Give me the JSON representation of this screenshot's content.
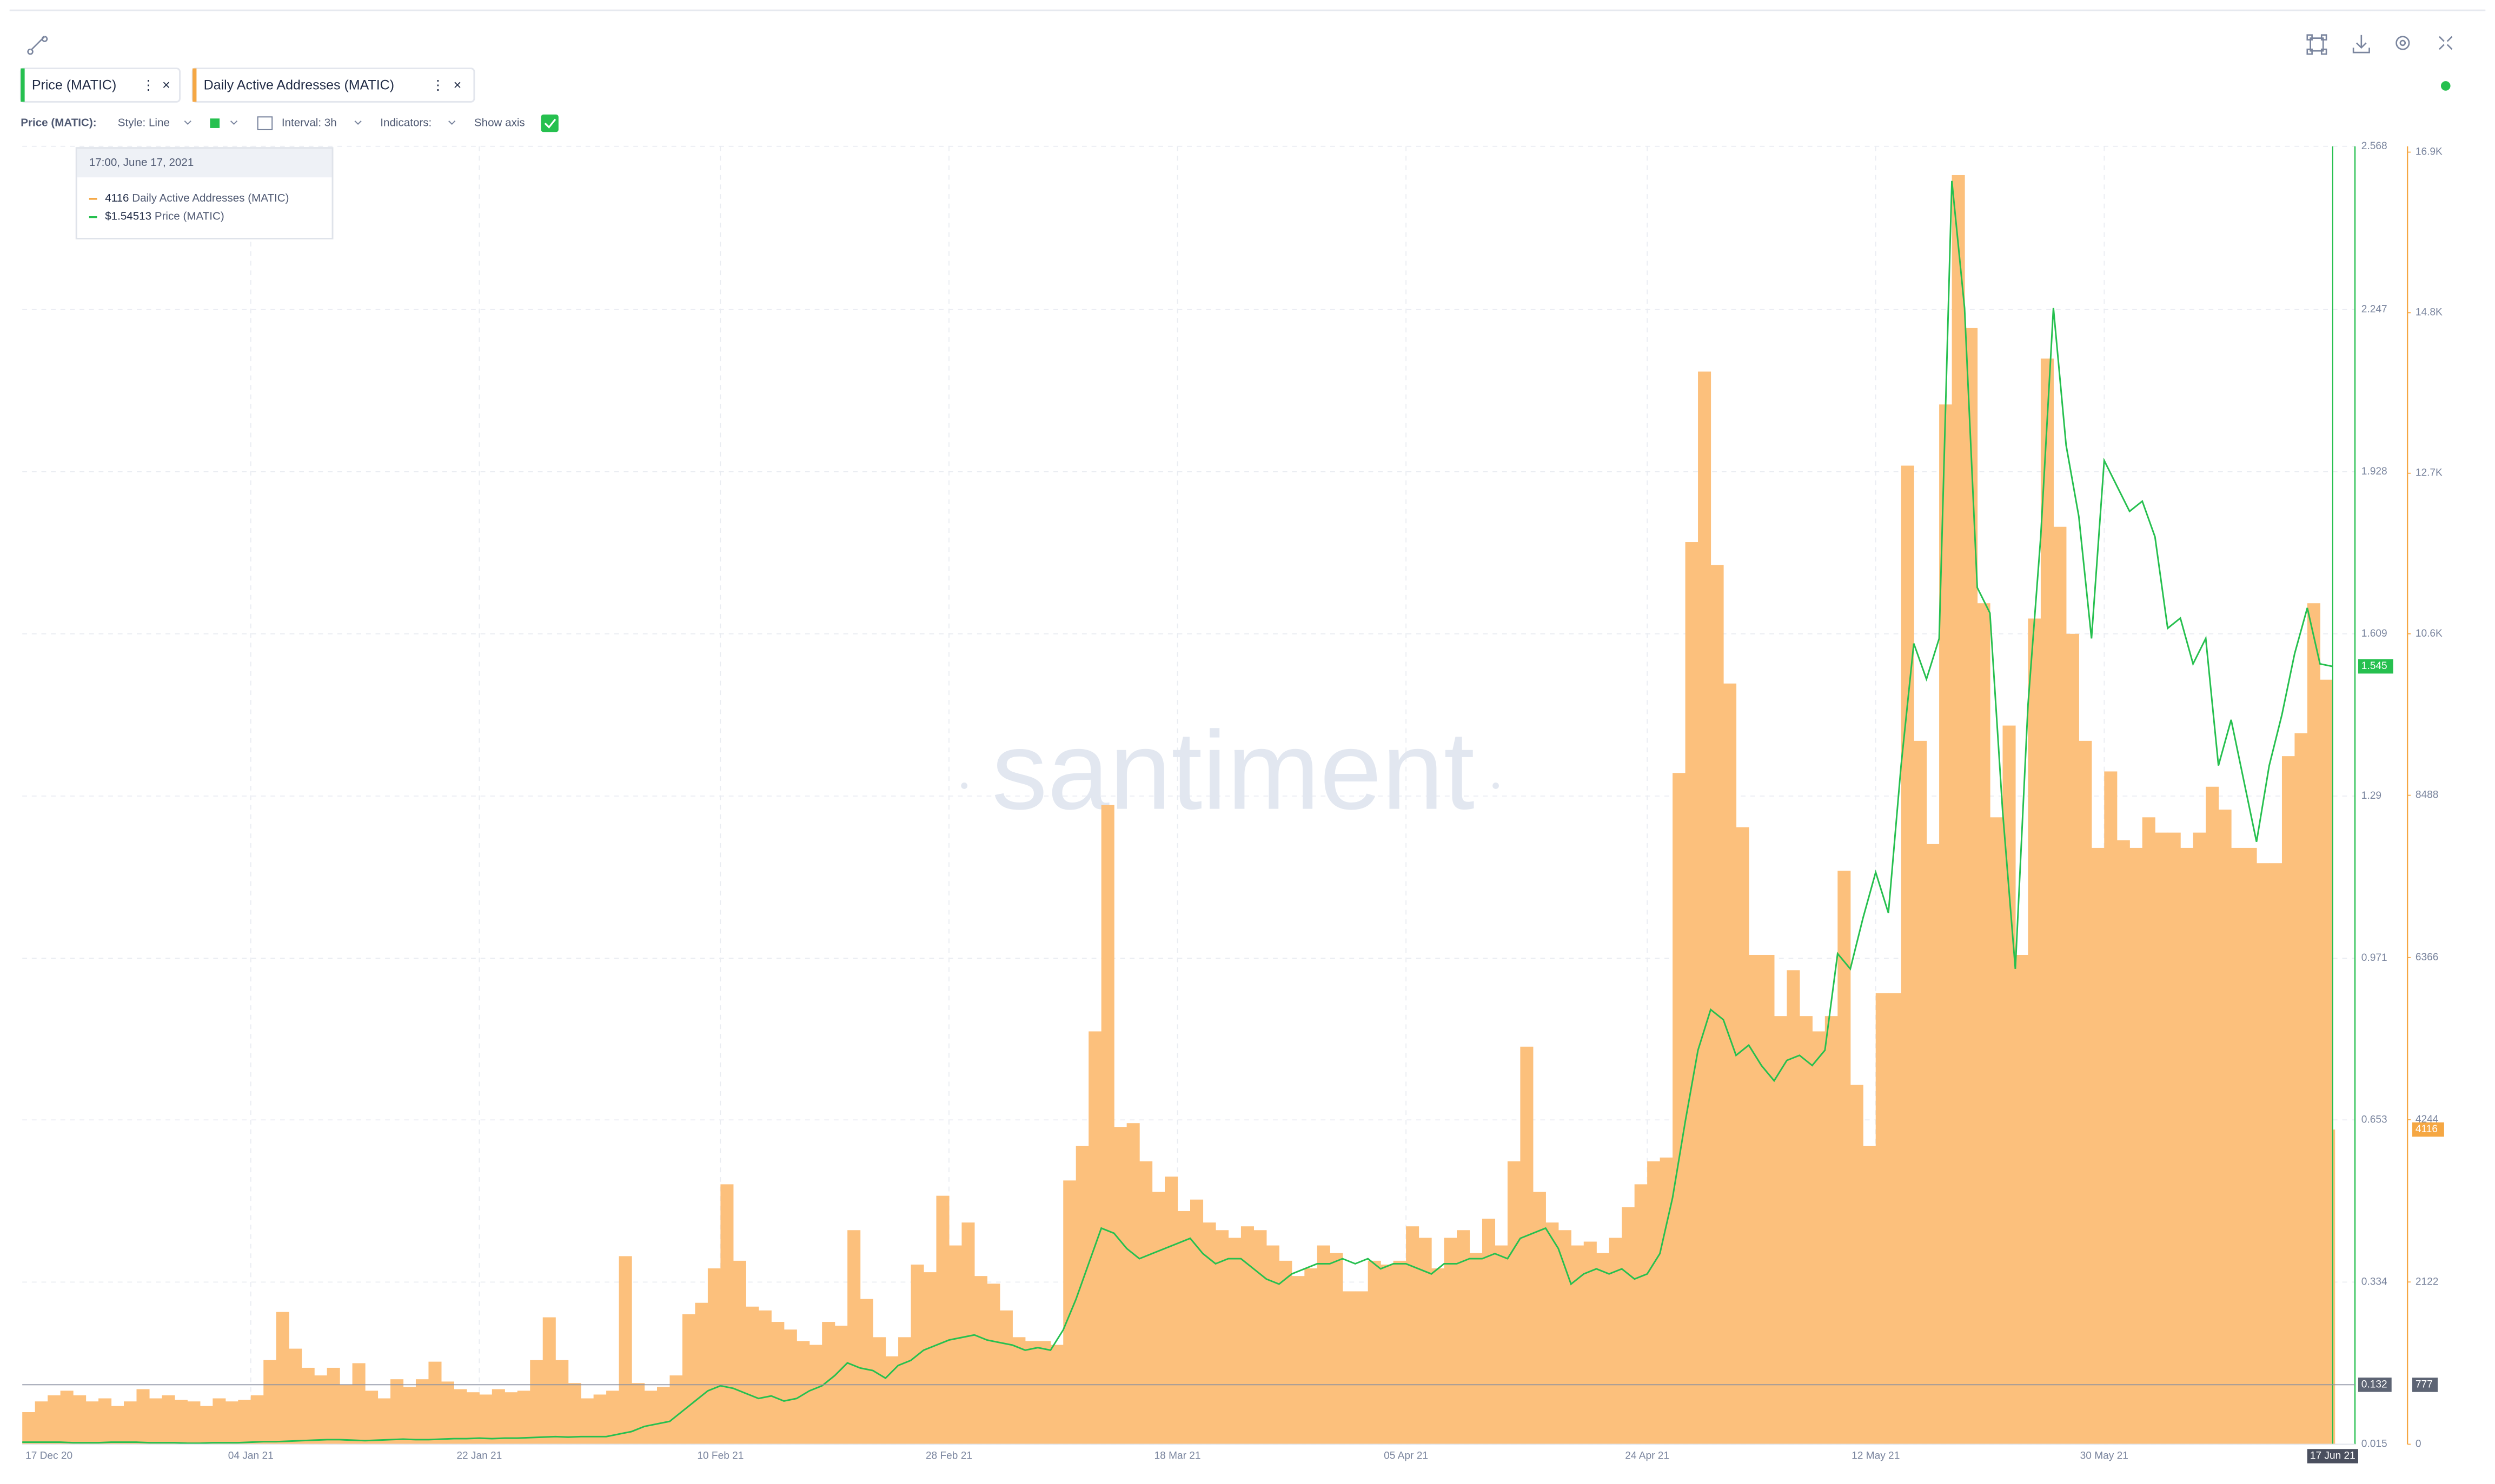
{
  "ui": {
    "toolbar": {
      "metric": "Price (MATIC):",
      "style": "Style: Line",
      "interval": "Interval: 3h",
      "indicators": "Indicators:",
      "show_axis": "Show axis"
    },
    "watermark": "santiment",
    "tooltip": {
      "time": "17:00, June 17, 2021",
      "rows": [
        {
          "value": "4116",
          "label": "Daily Active Addresses (MATIC)"
        },
        {
          "value": "$1.54513",
          "label": "Price (MATIC)"
        }
      ]
    }
  },
  "chart_data": {
    "type": "combo",
    "categories": [
      "17 Dec 20",
      null,
      null,
      null,
      null,
      null,
      null,
      null,
      null,
      null,
      null,
      null,
      null,
      null,
      null,
      null,
      null,
      null,
      "04 Jan 21",
      null,
      null,
      null,
      null,
      null,
      null,
      null,
      null,
      null,
      null,
      null,
      null,
      null,
      null,
      null,
      null,
      null,
      "22 Jan 21",
      null,
      null,
      null,
      null,
      null,
      null,
      null,
      null,
      null,
      null,
      null,
      null,
      null,
      null,
      null,
      null,
      null,
      null,
      "10 Feb 21",
      null,
      null,
      null,
      null,
      null,
      null,
      null,
      null,
      null,
      null,
      null,
      null,
      null,
      null,
      null,
      null,
      null,
      "28 Feb 21",
      null,
      null,
      null,
      null,
      null,
      null,
      null,
      null,
      null,
      null,
      null,
      null,
      null,
      null,
      null,
      null,
      null,
      "18 Mar 21",
      null,
      null,
      null,
      null,
      null,
      null,
      null,
      null,
      null,
      null,
      null,
      null,
      null,
      null,
      null,
      null,
      null,
      "05 Apr 21",
      null,
      null,
      null,
      null,
      null,
      null,
      null,
      null,
      null,
      null,
      null,
      null,
      null,
      null,
      null,
      null,
      null,
      null,
      "24 Apr 21",
      null,
      null,
      null,
      null,
      null,
      null,
      null,
      null,
      null,
      null,
      null,
      null,
      null,
      null,
      null,
      null,
      null,
      "12 May 21",
      null,
      null,
      null,
      null,
      null,
      null,
      null,
      null,
      null,
      null,
      null,
      null,
      null,
      null,
      null,
      null,
      null,
      "30 May 21",
      null,
      null,
      null,
      null,
      null,
      null,
      null,
      null,
      null,
      null,
      null,
      null,
      null,
      null,
      null,
      null,
      null,
      "17 Jun 21"
    ],
    "series": [
      {
        "name": "Daily Active Addresses (MATIC)",
        "type": "bar",
        "axis": "y2",
        "color": "#fcc07c",
        "axis_color": "#f5a743",
        "current": 4116,
        "values": [
          420,
          560,
          640,
          700,
          640,
          560,
          600,
          500,
          560,
          720,
          600,
          640,
          580,
          560,
          500,
          600,
          560,
          580,
          640,
          1100,
          1730,
          1250,
          1000,
          900,
          1000,
          780,
          1060,
          700,
          600,
          850,
          750,
          850,
          1080,
          820,
          720,
          680,
          650,
          720,
          680,
          700,
          1100,
          1660,
          1100,
          800,
          600,
          650,
          700,
          2460,
          800,
          700,
          750,
          900,
          1700,
          1850,
          2300,
          3400,
          2400,
          1800,
          1750,
          1600,
          1500,
          1350,
          1300,
          1600,
          1550,
          2800,
          1900,
          1400,
          1150,
          1400,
          2350,
          2250,
          3250,
          2600,
          2900,
          2200,
          2100,
          1750,
          1400,
          1350,
          1350,
          1300,
          3450,
          3900,
          5400,
          8360,
          4150,
          4200,
          3700,
          3300,
          3500,
          3050,
          3200,
          2900,
          2800,
          2700,
          2850,
          2800,
          2600,
          2400,
          2200,
          2300,
          2600,
          2500,
          2000,
          2000,
          2400,
          2350,
          2400,
          2850,
          2700,
          2300,
          2700,
          2800,
          2500,
          2950,
          2600,
          3700,
          5200,
          3300,
          2900,
          2800,
          2600,
          2650,
          2500,
          2700,
          3100,
          3400,
          3700,
          3750,
          8780,
          11800,
          14030,
          11500,
          9950,
          8070,
          6400,
          6400,
          5600,
          6200,
          5600,
          5400,
          5600,
          7500,
          4700,
          3900,
          5900,
          5900,
          12800,
          9200,
          7850,
          13600,
          16600,
          14600,
          11000,
          8200,
          9400,
          6400,
          10800,
          14200,
          12000,
          10600,
          9200,
          7800,
          8800,
          7900,
          7800,
          8200,
          8000,
          8000,
          7800,
          8000,
          8600,
          8300,
          7800,
          7800,
          7600,
          7600,
          9000,
          9300,
          11000,
          10000,
          4116
        ]
      },
      {
        "name": "Price (MATIC)",
        "type": "line",
        "axis": "y",
        "color": "#26c04f",
        "axis_color": "#26c04f",
        "current": 1.545,
        "values": [
          0.019,
          0.019,
          0.019,
          0.019,
          0.018,
          0.018,
          0.018,
          0.019,
          0.019,
          0.019,
          0.018,
          0.018,
          0.018,
          0.017,
          0.017,
          0.018,
          0.018,
          0.018,
          0.019,
          0.02,
          0.02,
          0.021,
          0.022,
          0.023,
          0.024,
          0.024,
          0.023,
          0.022,
          0.023,
          0.024,
          0.025,
          0.024,
          0.024,
          0.025,
          0.026,
          0.026,
          0.027,
          0.026,
          0.027,
          0.027,
          0.028,
          0.029,
          0.03,
          0.029,
          0.03,
          0.03,
          0.03,
          0.035,
          0.04,
          0.05,
          0.055,
          0.06,
          0.08,
          0.1,
          0.12,
          0.13,
          0.125,
          0.115,
          0.105,
          0.11,
          0.1,
          0.105,
          0.12,
          0.13,
          0.15,
          0.175,
          0.165,
          0.16,
          0.145,
          0.17,
          0.18,
          0.2,
          0.21,
          0.22,
          0.225,
          0.23,
          0.22,
          0.215,
          0.21,
          0.2,
          0.205,
          0.2,
          0.24,
          0.3,
          0.37,
          0.44,
          0.43,
          0.4,
          0.38,
          0.39,
          0.4,
          0.41,
          0.42,
          0.39,
          0.37,
          0.38,
          0.38,
          0.36,
          0.34,
          0.33,
          0.35,
          0.36,
          0.37,
          0.37,
          0.38,
          0.37,
          0.38,
          0.36,
          0.37,
          0.37,
          0.36,
          0.35,
          0.37,
          0.37,
          0.38,
          0.38,
          0.39,
          0.38,
          0.42,
          0.43,
          0.44,
          0.4,
          0.33,
          0.35,
          0.36,
          0.35,
          0.36,
          0.34,
          0.35,
          0.39,
          0.5,
          0.65,
          0.79,
          0.87,
          0.85,
          0.78,
          0.8,
          0.76,
          0.73,
          0.77,
          0.78,
          0.76,
          0.79,
          0.98,
          0.95,
          1.05,
          1.14,
          1.06,
          1.35,
          1.59,
          1.52,
          1.6,
          2.5,
          2.25,
          1.7,
          1.65,
          1.26,
          0.95,
          1.47,
          1.8,
          2.25,
          1.98,
          1.84,
          1.6,
          1.95,
          1.9,
          1.85,
          1.87,
          1.8,
          1.62,
          1.64,
          1.55,
          1.6,
          1.35,
          1.44,
          1.32,
          1.2,
          1.35,
          1.45,
          1.57,
          1.66,
          1.55,
          1.545
        ]
      }
    ],
    "ylim": [
      0.015,
      2.568
    ],
    "yticks": [
      0.015,
      0.334,
      0.653,
      0.971,
      1.29,
      1.609,
      1.928,
      2.247,
      2.568
    ],
    "y2lim": [
      0,
      16976
    ],
    "y2ticks": [
      0,
      2122,
      4244,
      6366,
      8488,
      {
        "value": 10600,
        "label": "10.6K"
      },
      {
        "value": 12700,
        "label": "12.7K"
      },
      {
        "value": 14800,
        "label": "14.8K"
      },
      {
        "value": 16900,
        "label": "16.9K"
      }
    ],
    "crosshair": {
      "y": 0.132,
      "y2": 777
    },
    "grid": true
  }
}
